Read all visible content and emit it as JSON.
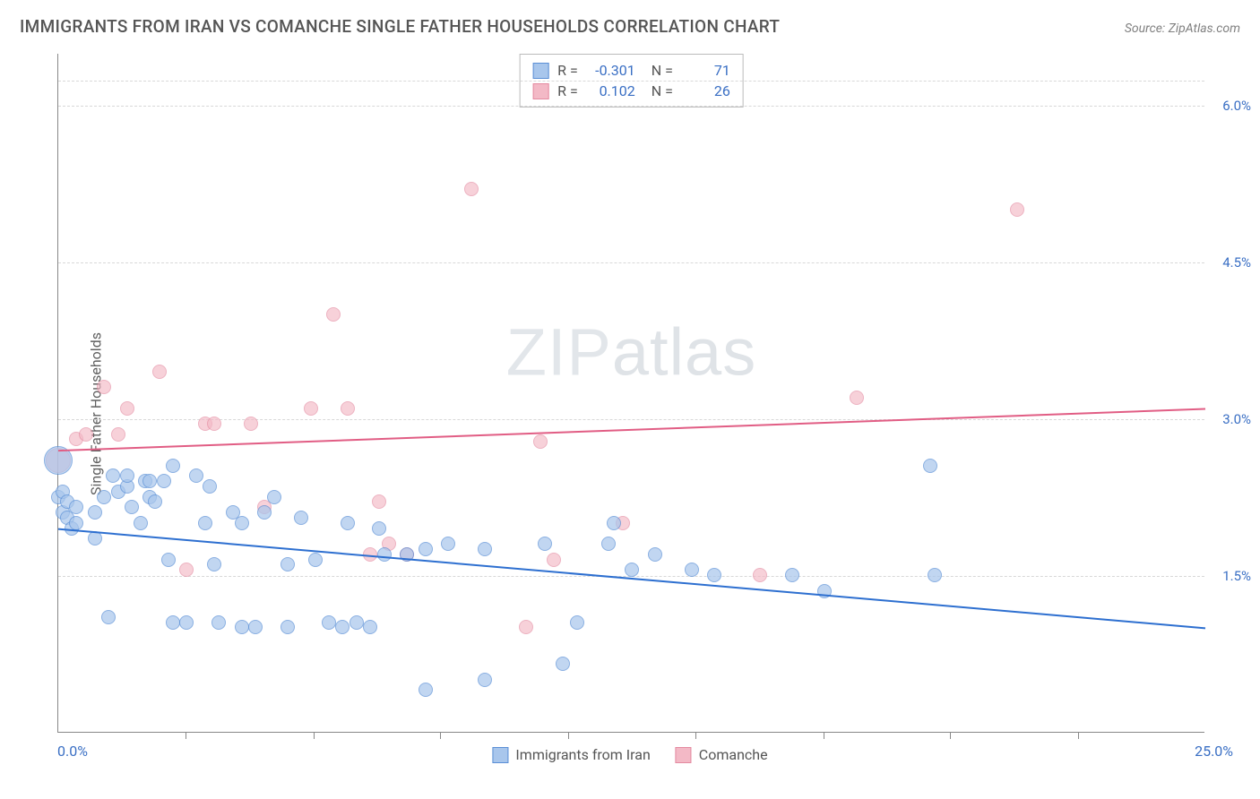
{
  "header": {
    "title": "IMMIGRANTS FROM IRAN VS COMANCHE SINGLE FATHER HOUSEHOLDS CORRELATION CHART",
    "source_prefix": "Source: ",
    "source": "ZipAtlas.com"
  },
  "watermark": {
    "bold": "ZIP",
    "thin": "atlas"
  },
  "chart": {
    "type": "scatter",
    "y_label": "Single Father Households",
    "xlim": [
      0.0,
      25.0
    ],
    "ylim": [
      0.0,
      6.5
    ],
    "x_origin_label": "0.0%",
    "x_end_label": "25.0%",
    "y_ticks": [
      {
        "value": 1.5,
        "label": "1.5%"
      },
      {
        "value": 3.0,
        "label": "3.0%"
      },
      {
        "value": 4.5,
        "label": "4.5%"
      },
      {
        "value": 6.0,
        "label": "6.0%"
      }
    ],
    "extra_grid_y": 0.04,
    "x_tick_positions": [
      2.78,
      5.56,
      8.33,
      11.11,
      13.89,
      16.67,
      19.44,
      22.22
    ],
    "background_color": "#ffffff",
    "grid_color": "#d8d8d8",
    "axis_color": "#888888",
    "y_tick_label_color": "#3a6fc4",
    "series": {
      "a": {
        "label": "Immigrants from Iran",
        "fill": "#a8c6ec",
        "stroke": "#5a8fd6",
        "opacity": 0.7,
        "base_marker_r": 8,
        "line_color": "#2d6fd0",
        "line_width": 2,
        "line_y_start": 1.95,
        "line_y_end": 1.0,
        "R": "-0.301",
        "N": "71",
        "points": [
          [
            0.0,
            2.25
          ],
          [
            0.0,
            2.6,
            16
          ],
          [
            0.1,
            2.1
          ],
          [
            0.1,
            2.3
          ],
          [
            0.2,
            2.05
          ],
          [
            0.2,
            2.2
          ],
          [
            0.3,
            1.95
          ],
          [
            0.4,
            2.15
          ],
          [
            0.4,
            2.0
          ],
          [
            0.8,
            2.1
          ],
          [
            0.8,
            1.85
          ],
          [
            1.0,
            2.25
          ],
          [
            1.1,
            1.1
          ],
          [
            1.2,
            2.45
          ],
          [
            1.3,
            2.3
          ],
          [
            1.5,
            2.35
          ],
          [
            1.5,
            2.45
          ],
          [
            1.6,
            2.15
          ],
          [
            1.8,
            2.0
          ],
          [
            1.9,
            2.4
          ],
          [
            2.0,
            2.4
          ],
          [
            2.0,
            2.25
          ],
          [
            2.1,
            2.2
          ],
          [
            2.3,
            2.4
          ],
          [
            2.4,
            1.65
          ],
          [
            2.5,
            2.55
          ],
          [
            2.5,
            1.05
          ],
          [
            2.8,
            1.05
          ],
          [
            3.0,
            2.45
          ],
          [
            3.2,
            2.0
          ],
          [
            3.3,
            2.35
          ],
          [
            3.4,
            1.6
          ],
          [
            3.5,
            1.05
          ],
          [
            3.8,
            2.1
          ],
          [
            4.0,
            1.0
          ],
          [
            4.0,
            2.0
          ],
          [
            4.3,
            1.0
          ],
          [
            4.5,
            2.1
          ],
          [
            4.7,
            2.25
          ],
          [
            5.0,
            1.0
          ],
          [
            5.0,
            1.6
          ],
          [
            5.3,
            2.05
          ],
          [
            5.6,
            1.65
          ],
          [
            5.9,
            1.05
          ],
          [
            6.2,
            1.0
          ],
          [
            6.3,
            2.0
          ],
          [
            6.5,
            1.05
          ],
          [
            6.8,
            1.0
          ],
          [
            7.0,
            1.95
          ],
          [
            7.1,
            1.7
          ],
          [
            7.6,
            1.7
          ],
          [
            8.0,
            1.75
          ],
          [
            8.0,
            0.4
          ],
          [
            8.5,
            1.8
          ],
          [
            9.3,
            1.75
          ],
          [
            9.3,
            0.5
          ],
          [
            10.6,
            1.8
          ],
          [
            11.0,
            0.65
          ],
          [
            11.3,
            1.05
          ],
          [
            12.0,
            1.8
          ],
          [
            12.1,
            2.0
          ],
          [
            12.5,
            1.55
          ],
          [
            13.0,
            1.7
          ],
          [
            13.8,
            1.55
          ],
          [
            14.3,
            1.5
          ],
          [
            16.0,
            1.5
          ],
          [
            16.7,
            1.35
          ],
          [
            19.0,
            2.55
          ],
          [
            19.1,
            1.5
          ]
        ]
      },
      "b": {
        "label": "Comanche",
        "fill": "#f3b9c6",
        "stroke": "#e48aa0",
        "opacity": 0.65,
        "base_marker_r": 8,
        "line_color": "#e15d84",
        "line_width": 2,
        "line_y_start": 2.7,
        "line_y_end": 3.1,
        "R": "0.102",
        "N": "26",
        "points": [
          [
            0.0,
            2.6,
            14
          ],
          [
            0.4,
            2.8
          ],
          [
            0.6,
            2.85
          ],
          [
            1.0,
            3.3
          ],
          [
            1.3,
            2.85
          ],
          [
            1.5,
            3.1
          ],
          [
            2.2,
            3.45
          ],
          [
            2.8,
            1.55
          ],
          [
            3.2,
            2.95
          ],
          [
            3.4,
            2.95
          ],
          [
            4.2,
            2.95
          ],
          [
            4.5,
            2.15
          ],
          [
            5.5,
            3.1
          ],
          [
            6.0,
            4.0
          ],
          [
            6.3,
            3.1
          ],
          [
            6.8,
            1.7
          ],
          [
            7.0,
            2.2
          ],
          [
            7.2,
            1.8
          ],
          [
            7.6,
            1.7
          ],
          [
            9.0,
            5.2
          ],
          [
            10.2,
            1.0
          ],
          [
            10.5,
            2.78
          ],
          [
            10.8,
            1.65
          ],
          [
            12.3,
            2.0
          ],
          [
            15.3,
            1.5
          ],
          [
            17.4,
            3.2
          ],
          [
            20.9,
            5.0
          ]
        ]
      }
    }
  },
  "legend_bottom": {
    "items": [
      {
        "key": "a"
      },
      {
        "key": "b"
      }
    ]
  }
}
